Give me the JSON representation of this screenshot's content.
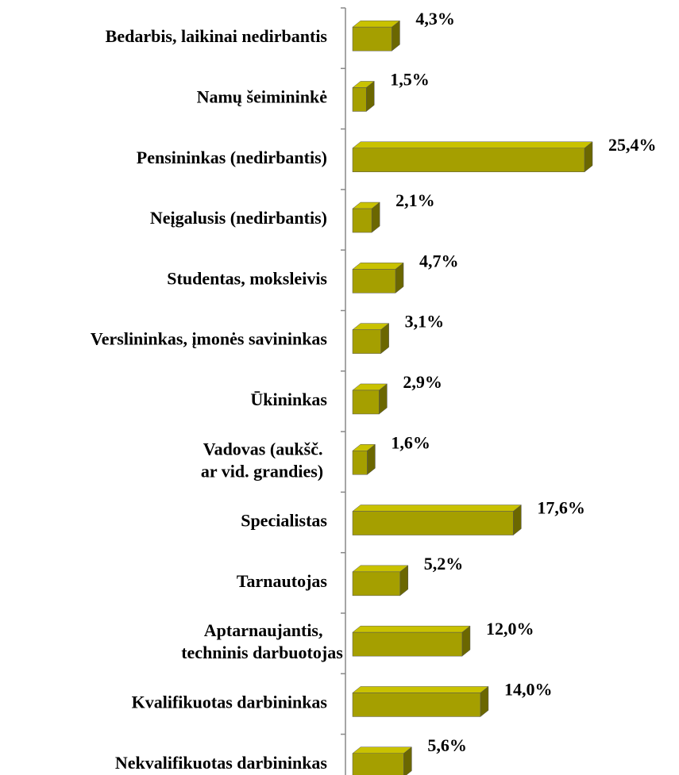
{
  "chart_data": {
    "type": "bar",
    "orientation": "horizontal",
    "categories": [
      "Bedarbis, laikinai nedirbantis",
      "Namų šeimininkė",
      "Pensininkas (nedirbantis)",
      "Neįgalusis (nedirbantis)",
      "Studentas, moksleivis",
      "Verslininkas, įmonės savininkas",
      "Ūkininkas",
      "Vadovas (aukšč. ar vid. grandies)",
      "Specialistas",
      "Tarnautojas",
      "Aptarnaujantis, techninis darbuotojas",
      "Kvalifikuotas darbininkas",
      "Nekvalifikuotas darbininkas"
    ],
    "values": [
      4.3,
      1.5,
      25.4,
      2.1,
      4.7,
      3.1,
      2.9,
      1.6,
      17.6,
      5.2,
      12.0,
      14.0,
      5.6
    ],
    "value_labels": [
      "4,3%",
      "1,5%",
      "25,4%",
      "2,1%",
      "4,7%",
      "3,1%",
      "2,9%",
      "1,6%",
      "17,6%",
      "5,2%",
      "12,0%",
      "14,0%",
      "5,6%"
    ],
    "color": "#a59f00"
  }
}
